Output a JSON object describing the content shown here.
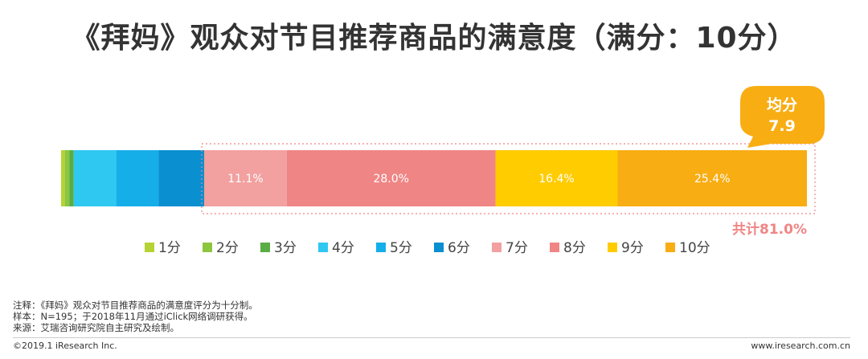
{
  "title": "《拜妈》观众对节目推荐商品的满意度（满分：10分）",
  "chart_data": {
    "type": "bar",
    "orientation": "horizontal-stacked",
    "unit": "%",
    "categories": [
      "1分",
      "2分",
      "3分",
      "4分",
      "5分",
      "6分",
      "7分",
      "8分",
      "9分",
      "10分"
    ],
    "values": [
      0.5,
      0.6,
      0.6,
      5.7,
      5.7,
      6.1,
      11.1,
      28.0,
      16.4,
      25.4
    ],
    "data_labels": [
      "",
      "",
      "",
      "",
      "",
      "",
      "11.1%",
      "28.0%",
      "16.4%",
      "25.4%"
    ],
    "colors": [
      "#b5d334",
      "#8cc63f",
      "#5aac44",
      "#2ec8f0",
      "#16aee8",
      "#0a8fd0",
      "#f3a0a0",
      "#f08585",
      "#ffcc00",
      "#f8ad13"
    ],
    "legend_position": "bottom",
    "average_badge": {
      "label": "均分",
      "value": "7.9"
    },
    "highlight_total": "共计81.0%"
  },
  "footer": {
    "note": "注释：《拜妈》观众对节目推荐商品的满意度评分为十分制。",
    "sample": "样本：N=195；于2018年11月通过iClick网络调研获得。",
    "source": "来源：艾瑞咨询研究院自主研究及绘制。",
    "copyright": "©2019.1 iResearch Inc.",
    "website": "www.iresearch.com.cn"
  },
  "colors": {
    "title": "#333333",
    "badge": "#f8ad13",
    "highlight": "#f08585"
  }
}
